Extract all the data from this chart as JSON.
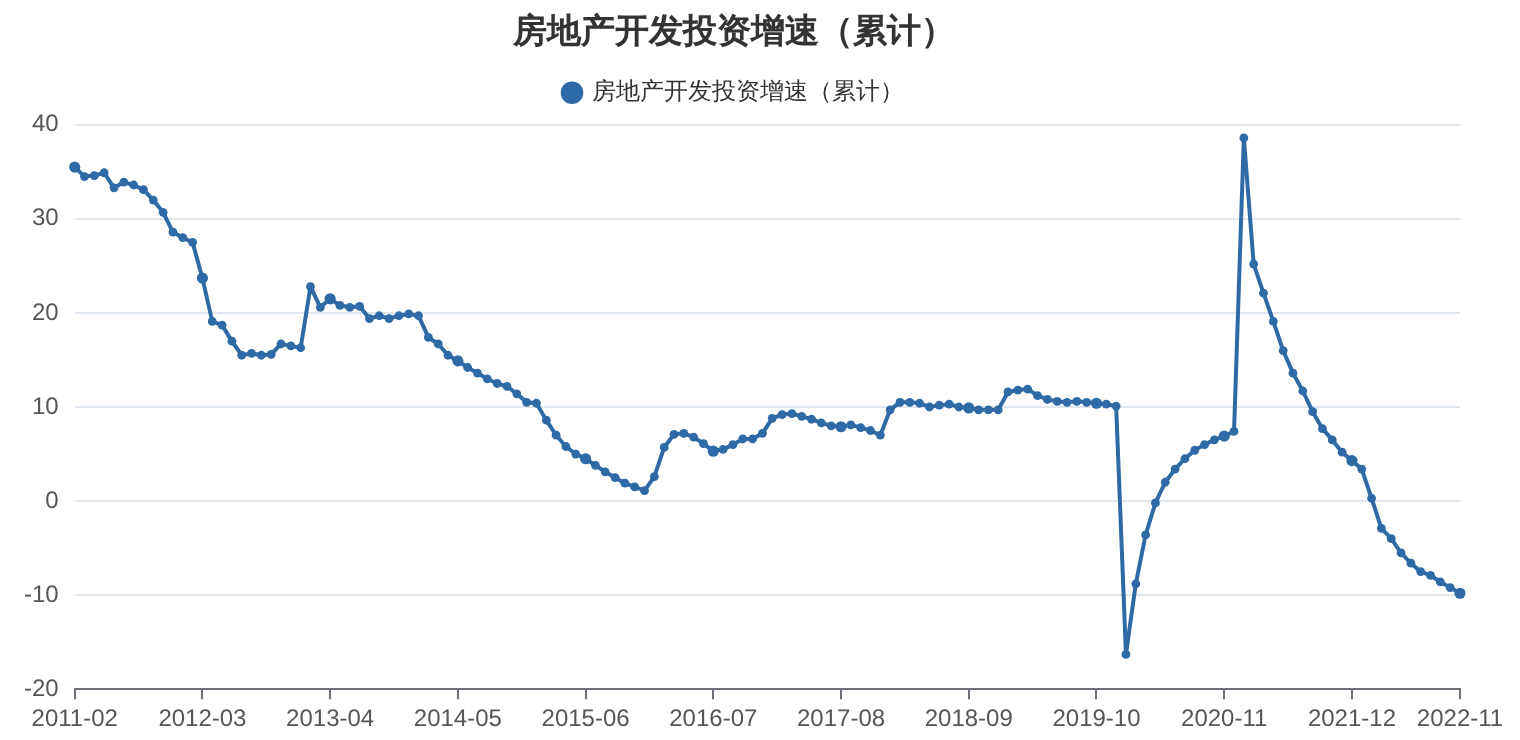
{
  "chart_data": {
    "type": "line",
    "title": "房地产开发投资增速（累计）",
    "categories": [
      "2011-02",
      null,
      null,
      null,
      null,
      null,
      null,
      null,
      null,
      null,
      null,
      null,
      null,
      "2012-03",
      null,
      null,
      null,
      null,
      null,
      null,
      null,
      null,
      null,
      null,
      null,
      null,
      "2013-04",
      null,
      null,
      null,
      null,
      null,
      null,
      null,
      null,
      null,
      null,
      null,
      null,
      "2014-05",
      null,
      null,
      null,
      null,
      null,
      null,
      null,
      null,
      null,
      null,
      null,
      null,
      "2015-06",
      null,
      null,
      null,
      null,
      null,
      null,
      null,
      null,
      null,
      null,
      null,
      null,
      "2016-07",
      null,
      null,
      null,
      null,
      null,
      null,
      null,
      null,
      null,
      null,
      null,
      null,
      "2017-08",
      null,
      null,
      null,
      null,
      null,
      null,
      null,
      null,
      null,
      null,
      null,
      null,
      "2018-09",
      null,
      null,
      null,
      null,
      null,
      null,
      null,
      null,
      null,
      null,
      null,
      null,
      "2019-10",
      null,
      null,
      null,
      null,
      null,
      null,
      null,
      null,
      null,
      null,
      null,
      null,
      "2020-11",
      null,
      null,
      null,
      null,
      null,
      null,
      null,
      null,
      null,
      null,
      null,
      null,
      "2021-12",
      null,
      null,
      null,
      null,
      null,
      null,
      null,
      null,
      null,
      null,
      "2022-11"
    ],
    "series": [
      {
        "name": "房地产开发投资增速（累计）",
        "color": "#2e6aa6",
        "values": [
          35.5,
          34.5,
          34.6,
          34.9,
          33.3,
          33.9,
          33.6,
          33.1,
          32.0,
          30.7,
          28.6,
          28.0,
          27.5,
          23.7,
          19.1,
          18.7,
          17.0,
          15.5,
          15.7,
          15.5,
          15.6,
          16.7,
          16.5,
          16.3,
          22.8,
          20.6,
          21.5,
          20.8,
          20.6,
          20.7,
          19.4,
          19.7,
          19.4,
          19.7,
          19.9,
          19.7,
          17.4,
          16.7,
          15.5,
          14.9,
          14.2,
          13.6,
          13.0,
          12.5,
          12.2,
          11.4,
          10.5,
          10.4,
          8.6,
          7.0,
          5.8,
          5.0,
          4.5,
          3.8,
          3.1,
          2.5,
          1.9,
          1.5,
          1.1,
          2.6,
          5.7,
          7.1,
          7.2,
          6.8,
          6.1,
          5.3,
          5.5,
          6.0,
          6.6,
          6.6,
          7.2,
          8.8,
          9.2,
          9.3,
          9.0,
          8.7,
          8.3,
          8.0,
          7.9,
          8.1,
          7.8,
          7.5,
          7.0,
          9.7,
          10.5,
          10.5,
          10.4,
          10.0,
          10.2,
          10.3,
          10.0,
          9.9,
          9.7,
          9.7,
          9.7,
          11.6,
          11.8,
          11.9,
          11.2,
          10.8,
          10.6,
          10.5,
          10.6,
          10.5,
          10.4,
          10.3,
          10.1,
          -16.3,
          -8.8,
          -3.6,
          -0.2,
          2.0,
          3.4,
          4.5,
          5.4,
          6.0,
          6.5,
          6.9,
          7.4,
          38.6,
          25.2,
          22.1,
          19.1,
          16.0,
          13.6,
          11.7,
          9.5,
          7.7,
          6.5,
          5.2,
          4.3,
          3.4,
          0.3,
          -2.9,
          -4.0,
          -5.5,
          -6.6,
          -7.5,
          -7.9,
          -8.6,
          -9.2,
          -9.8
        ]
      }
    ],
    "ylim": [
      -20,
      40
    ],
    "yticks": [
      -20,
      -10,
      0,
      10,
      20,
      30,
      40
    ],
    "grid": "y",
    "legend": "top",
    "marker": "circle",
    "line_style": "solid"
  }
}
